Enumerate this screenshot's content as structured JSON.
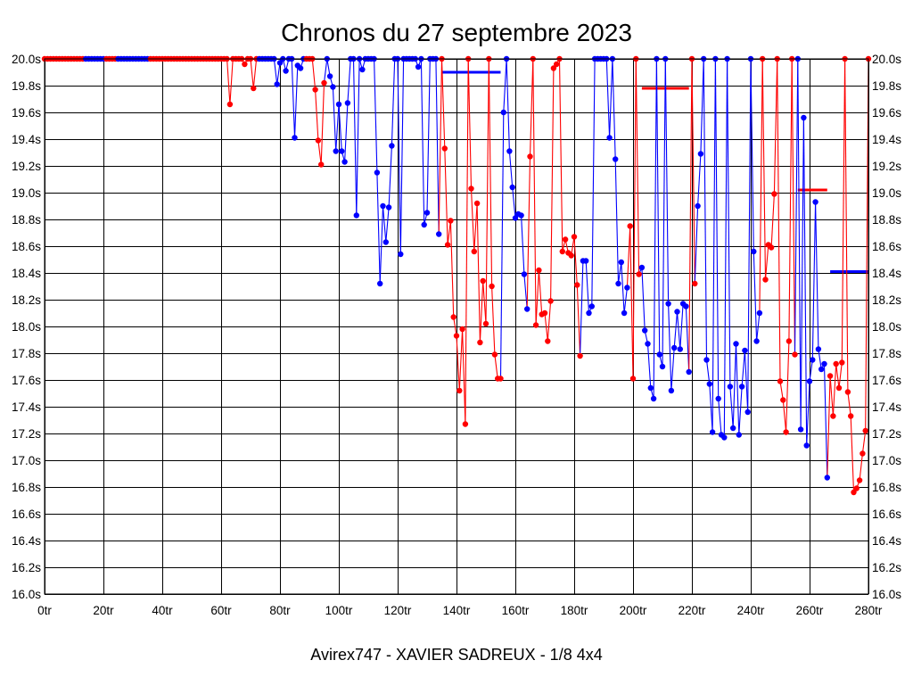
{
  "chart_data": {
    "type": "line",
    "title": "Chronos du 27 septembre 2023",
    "caption": "Avirex747 - XAVIER SADREUX - 1/8 4x4",
    "xlim": [
      0,
      280
    ],
    "ylim": [
      16.0,
      20.0
    ],
    "grid": true,
    "x_ticks": {
      "values": [
        0,
        20,
        40,
        60,
        80,
        100,
        120,
        140,
        160,
        180,
        200,
        220,
        240,
        260,
        280
      ],
      "labels": [
        "0tr",
        "20tr",
        "40tr",
        "60tr",
        "80tr",
        "100tr",
        "120tr",
        "140tr",
        "160tr",
        "180tr",
        "200tr",
        "220tr",
        "240tr",
        "260tr",
        "280tr"
      ]
    },
    "y_ticks": {
      "values": [
        20.0,
        19.8,
        19.6,
        19.4,
        19.2,
        19.0,
        18.8,
        18.6,
        18.4,
        18.2,
        18.0,
        17.8,
        17.6,
        17.4,
        17.2,
        17.0,
        16.8,
        16.6,
        16.4,
        16.2,
        16.0
      ],
      "labels": [
        "20.0s",
        "19.8s",
        "19.6s",
        "19.4s",
        "19.2s",
        "19.0s",
        "18.8s",
        "18.6s",
        "18.4s",
        "18.2s",
        "18.0s",
        "17.8s",
        "17.6s",
        "17.4s",
        "17.2s",
        "17.0s",
        "16.8s",
        "16.6s",
        "16.4s",
        "16.2s",
        "16.0s"
      ]
    },
    "colors": {
      "red": "#ff0000",
      "blue": "#0000ff",
      "grid": "#000000",
      "background": "#ffffff"
    },
    "runs": [
      {
        "color": "red",
        "points": [
          [
            0,
            20
          ],
          [
            1,
            20
          ],
          [
            2,
            20
          ],
          [
            3,
            20
          ],
          [
            4,
            20
          ],
          [
            5,
            20
          ],
          [
            6,
            20
          ],
          [
            7,
            20
          ],
          [
            8,
            20
          ],
          [
            9,
            20
          ],
          [
            10,
            20
          ],
          [
            11,
            20
          ],
          [
            12,
            20
          ],
          [
            13,
            20
          ]
        ]
      },
      {
        "color": "blue",
        "points": [
          [
            14,
            20
          ],
          [
            15,
            20
          ],
          [
            16,
            20
          ],
          [
            17,
            20
          ],
          [
            18,
            20
          ],
          [
            19,
            20
          ],
          [
            20,
            20
          ]
        ]
      },
      {
        "color": "red",
        "points": [
          [
            21,
            20
          ],
          [
            22,
            20
          ],
          [
            23,
            20
          ],
          [
            24,
            20
          ]
        ]
      },
      {
        "color": "blue",
        "points": [
          [
            25,
            20
          ],
          [
            26,
            20
          ],
          [
            27,
            20
          ],
          [
            28,
            20
          ],
          [
            29,
            20
          ],
          [
            30,
            20
          ],
          [
            31,
            20
          ],
          [
            32,
            20
          ],
          [
            33,
            20
          ],
          [
            34,
            20
          ],
          [
            35,
            20
          ]
        ]
      },
      {
        "color": "red",
        "points": [
          [
            36,
            20
          ],
          [
            37,
            20
          ],
          [
            38,
            20
          ],
          [
            39,
            20
          ],
          [
            40,
            20
          ],
          [
            41,
            20
          ],
          [
            42,
            20
          ],
          [
            43,
            20
          ],
          [
            44,
            20
          ],
          [
            45,
            20
          ],
          [
            46,
            20
          ],
          [
            47,
            20
          ],
          [
            48,
            20
          ],
          [
            49,
            20
          ],
          [
            50,
            20
          ],
          [
            51,
            20
          ],
          [
            52,
            20
          ],
          [
            53,
            20
          ],
          [
            54,
            20
          ],
          [
            55,
            20
          ],
          [
            56,
            20
          ],
          [
            57,
            20
          ],
          [
            58,
            20
          ],
          [
            59,
            20
          ],
          [
            60,
            20
          ],
          [
            61,
            20
          ],
          [
            62,
            20
          ],
          [
            63,
            19.66
          ],
          [
            64,
            20
          ],
          [
            65,
            20
          ],
          [
            66,
            20
          ],
          [
            67,
            20
          ],
          [
            68,
            19.96
          ],
          [
            69,
            20
          ],
          [
            70,
            20
          ],
          [
            71,
            19.78
          ],
          [
            72,
            20
          ]
        ]
      },
      {
        "color": "blue",
        "points": [
          [
            73,
            20
          ],
          [
            74,
            20
          ],
          [
            75,
            20
          ],
          [
            76,
            20
          ],
          [
            77,
            20
          ],
          [
            78,
            20
          ],
          [
            79,
            19.81
          ],
          [
            80,
            19.97
          ],
          [
            81,
            20
          ],
          [
            82,
            19.91
          ],
          [
            83,
            20
          ],
          [
            84,
            20
          ],
          [
            85,
            19.41
          ],
          [
            86,
            19.95
          ],
          [
            87,
            19.93
          ],
          [
            88,
            20
          ]
        ]
      },
      {
        "color": "red",
        "points": [
          [
            89,
            20
          ],
          [
            90,
            20
          ],
          [
            91,
            20
          ],
          [
            92,
            19.77
          ],
          [
            93,
            19.39
          ],
          [
            94,
            19.21
          ],
          [
            95,
            19.82
          ]
        ]
      },
      {
        "color": "blue",
        "points": [
          [
            96,
            20
          ],
          [
            97,
            19.87
          ],
          [
            98,
            19.79
          ],
          [
            99,
            19.31
          ],
          [
            100,
            19.66
          ],
          [
            101,
            19.31
          ],
          [
            102,
            19.23
          ],
          [
            103,
            19.67
          ],
          [
            104,
            20
          ],
          [
            105,
            20
          ],
          [
            106,
            18.83
          ],
          [
            107,
            20
          ],
          [
            108,
            19.92
          ],
          [
            109,
            20
          ],
          [
            110,
            20
          ],
          [
            111,
            20
          ],
          [
            112,
            20
          ],
          [
            113,
            19.15
          ],
          [
            114,
            18.32
          ],
          [
            115,
            18.9
          ],
          [
            116,
            18.63
          ],
          [
            117,
            18.89
          ],
          [
            118,
            19.35
          ],
          [
            119,
            20
          ],
          [
            120,
            20
          ],
          [
            121,
            18.54
          ],
          [
            122,
            20
          ],
          [
            123,
            20
          ],
          [
            124,
            20
          ],
          [
            125,
            20
          ],
          [
            126,
            20
          ],
          [
            127,
            19.94
          ],
          [
            128,
            20
          ],
          [
            129,
            18.76
          ],
          [
            130,
            18.85
          ],
          [
            131,
            20
          ],
          [
            132,
            20
          ],
          [
            133,
            20
          ],
          [
            134,
            18.69
          ]
        ]
      },
      {
        "color": "red",
        "points": [
          [
            135,
            20
          ],
          [
            136,
            19.33
          ],
          [
            137,
            18.61
          ],
          [
            138,
            18.79
          ],
          [
            139,
            18.07
          ],
          [
            140,
            17.93
          ],
          [
            141,
            17.52
          ],
          [
            142,
            17.98
          ],
          [
            143,
            17.27
          ],
          [
            144,
            20
          ],
          [
            145,
            19.03
          ],
          [
            146,
            18.56
          ],
          [
            147,
            18.92
          ],
          [
            148,
            17.88
          ],
          [
            149,
            18.34
          ],
          [
            150,
            18.02
          ],
          [
            151,
            20
          ],
          [
            152,
            18.3
          ],
          [
            153,
            17.79
          ],
          [
            154,
            17.61
          ],
          [
            155,
            17.61
          ]
        ]
      },
      {
        "color": "blue",
        "points": [
          [
            156,
            19.6
          ],
          [
            157,
            20
          ],
          [
            158,
            19.31
          ],
          [
            159,
            19.04
          ],
          [
            160,
            18.81
          ],
          [
            161,
            18.84
          ],
          [
            162,
            18.83
          ],
          [
            163,
            18.39
          ],
          [
            164,
            18.13
          ]
        ]
      },
      {
        "color": "red",
        "points": [
          [
            165,
            19.27
          ],
          [
            166,
            20
          ],
          [
            167,
            18.01
          ],
          [
            168,
            18.42
          ],
          [
            169,
            18.09
          ],
          [
            170,
            18.1
          ],
          [
            171,
            17.89
          ],
          [
            172,
            18.19
          ],
          [
            173,
            19.93
          ],
          [
            174,
            19.96
          ],
          [
            175,
            20
          ],
          [
            176,
            18.56
          ],
          [
            177,
            18.65
          ],
          [
            178,
            18.55
          ],
          [
            179,
            18.53
          ],
          [
            180,
            18.67
          ],
          [
            181,
            18.31
          ],
          [
            182,
            17.78
          ]
        ]
      },
      {
        "color": "blue",
        "points": [
          [
            183,
            18.49
          ],
          [
            184,
            18.49
          ],
          [
            185,
            18.1
          ],
          [
            186,
            18.15
          ],
          [
            187,
            20
          ],
          [
            188,
            20
          ],
          [
            189,
            20
          ],
          [
            190,
            20
          ],
          [
            191,
            20
          ],
          [
            192,
            19.41
          ],
          [
            193,
            20
          ],
          [
            194,
            19.25
          ],
          [
            195,
            18.32
          ],
          [
            196,
            18.48
          ],
          [
            197,
            18.1
          ],
          [
            198,
            18.29
          ]
        ]
      },
      {
        "color": "red",
        "points": [
          [
            199,
            18.75
          ],
          [
            200,
            17.61
          ],
          [
            201,
            20
          ],
          [
            202,
            18.39
          ]
        ]
      },
      {
        "color": "blue",
        "points": [
          [
            203,
            18.44
          ],
          [
            204,
            17.97
          ],
          [
            205,
            17.87
          ],
          [
            206,
            17.54
          ],
          [
            207,
            17.46
          ],
          [
            208,
            20
          ],
          [
            209,
            17.79
          ],
          [
            210,
            17.7
          ],
          [
            211,
            20
          ],
          [
            212,
            18.17
          ],
          [
            213,
            17.52
          ],
          [
            214,
            17.84
          ],
          [
            215,
            18.11
          ],
          [
            216,
            17.83
          ],
          [
            217,
            18.17
          ],
          [
            218,
            18.15
          ],
          [
            219,
            17.66
          ]
        ]
      },
      {
        "color": "red",
        "points": [
          [
            220,
            20
          ],
          [
            221,
            18.32
          ]
        ]
      },
      {
        "color": "blue",
        "points": [
          [
            222,
            18.9
          ],
          [
            223,
            19.29
          ],
          [
            224,
            20
          ],
          [
            225,
            17.75
          ],
          [
            226,
            17.57
          ],
          [
            227,
            17.21
          ],
          [
            228,
            20
          ],
          [
            229,
            17.46
          ],
          [
            230,
            17.19
          ],
          [
            231,
            17.17
          ],
          [
            232,
            20
          ],
          [
            233,
            17.55
          ],
          [
            234,
            17.24
          ],
          [
            235,
            17.87
          ],
          [
            236,
            17.19
          ],
          [
            237,
            17.55
          ],
          [
            238,
            17.82
          ],
          [
            239,
            17.36
          ],
          [
            240,
            20
          ],
          [
            241,
            18.56
          ],
          [
            242,
            17.89
          ],
          [
            243,
            18.1
          ]
        ]
      },
      {
        "color": "red",
        "points": [
          [
            244,
            20
          ],
          [
            245,
            18.35
          ],
          [
            246,
            18.61
          ],
          [
            247,
            18.59
          ],
          [
            248,
            18.99
          ],
          [
            249,
            20
          ],
          [
            250,
            17.59
          ],
          [
            251,
            17.45
          ],
          [
            252,
            17.21
          ],
          [
            253,
            17.89
          ],
          [
            254,
            20
          ],
          [
            255,
            17.79
          ]
        ]
      },
      {
        "color": "blue",
        "points": [
          [
            256,
            20
          ],
          [
            257,
            17.23
          ],
          [
            258,
            19.56
          ],
          [
            259,
            17.11
          ],
          [
            260,
            17.59
          ],
          [
            261,
            17.75
          ],
          [
            262,
            18.93
          ],
          [
            263,
            17.83
          ],
          [
            264,
            17.68
          ],
          [
            265,
            17.72
          ],
          [
            266,
            16.87
          ]
        ]
      },
      {
        "color": "red",
        "points": [
          [
            267,
            17.63
          ],
          [
            268,
            17.33
          ],
          [
            269,
            17.72
          ],
          [
            270,
            17.54
          ],
          [
            271,
            17.73
          ],
          [
            272,
            20
          ],
          [
            273,
            17.51
          ],
          [
            274,
            17.33
          ],
          [
            275,
            16.76
          ],
          [
            276,
            16.79
          ],
          [
            277,
            16.85
          ],
          [
            278,
            17.05
          ],
          [
            279,
            17.22
          ],
          [
            280,
            20
          ]
        ]
      }
    ],
    "reference_lines": [
      {
        "color": "blue",
        "from": 135,
        "to": 155,
        "value": 19.9
      },
      {
        "color": "red",
        "from": 203,
        "to": 219,
        "value": 19.78
      },
      {
        "color": "red",
        "from": 256,
        "to": 266,
        "value": 19.02
      },
      {
        "color": "blue",
        "from": 267,
        "to": 280,
        "value": 18.41
      }
    ]
  }
}
